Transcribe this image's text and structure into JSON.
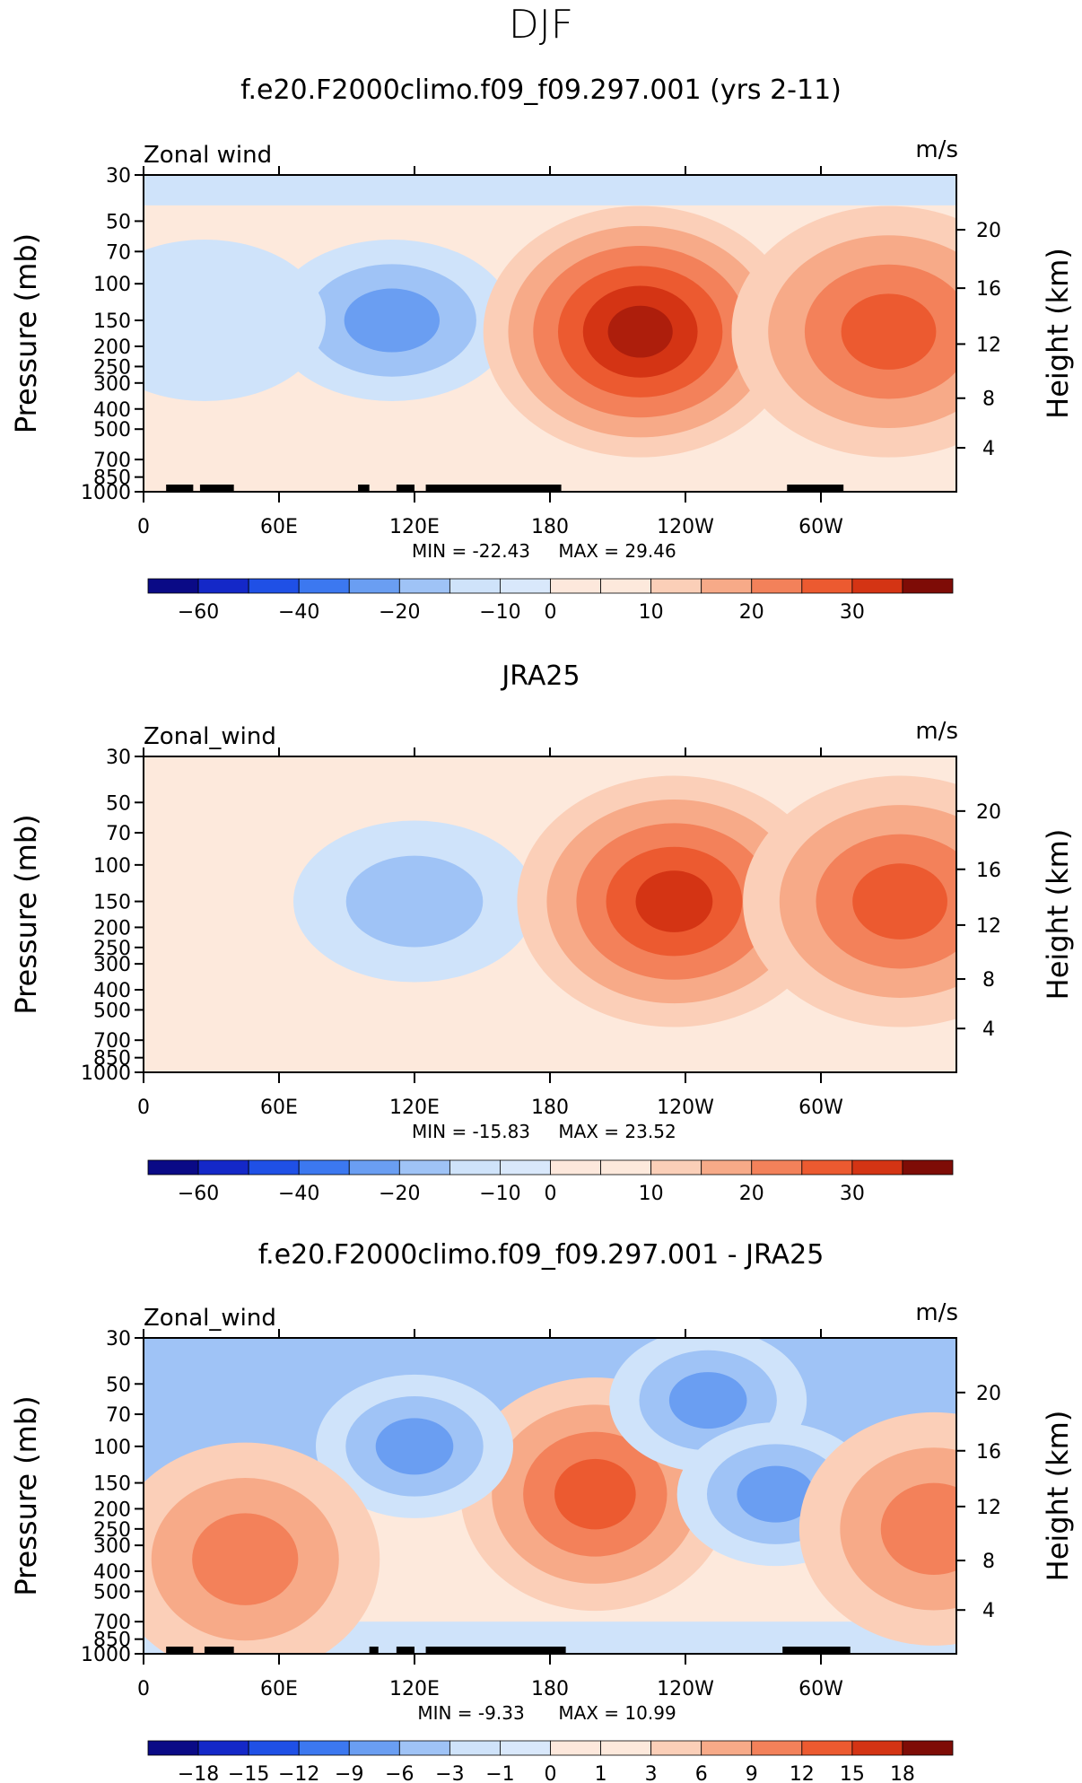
{
  "figure_title": "DJF",
  "chart_data": [
    {
      "type": "heatmap",
      "title": "f.e20.F2000climo.f09_f09.297.001 (yrs 2-11)",
      "left_label": "Zonal wind",
      "units": "m/s",
      "ylabel": "Pressure (mb)",
      "ylabel_right": "Height (km)",
      "pressure_ticks": [
        "30",
        "50",
        "70",
        "100",
        "150",
        "200",
        "250",
        "300",
        "400",
        "500",
        "700",
        "850",
        "1000"
      ],
      "height_ticks": [
        "20",
        "16",
        "12",
        "8",
        "4"
      ],
      "lon_ticks": [
        "0",
        "60E",
        "120E",
        "180",
        "120W",
        "60W"
      ],
      "min_text": "MIN = -22.43",
      "max_text": "MAX = 29.46",
      "colorbar_labels": [
        "-60",
        "-40",
        "-20",
        "-10",
        "0",
        "10",
        "20",
        "30"
      ],
      "features": [
        {
          "lon": 110,
          "p": 150,
          "level": -3
        },
        {
          "lon": 220,
          "p": 170,
          "level": 6
        },
        {
          "lon": 330,
          "p": 170,
          "level": 4
        },
        {
          "lon": 27,
          "p": 150,
          "level": -1
        }
      ],
      "topography": [
        [
          10,
          22
        ],
        [
          25,
          40
        ],
        [
          95,
          100
        ],
        [
          112,
          120
        ],
        [
          125,
          185
        ],
        [
          285,
          310
        ]
      ]
    },
    {
      "type": "heatmap",
      "title": "JRA25",
      "left_label": "Zonal_wind",
      "units": "m/s",
      "ylabel": "Pressure (mb)",
      "ylabel_right": "Height (km)",
      "pressure_ticks": [
        "30",
        "50",
        "70",
        "100",
        "150",
        "200",
        "250",
        "300",
        "400",
        "500",
        "700",
        "850",
        "1000"
      ],
      "height_ticks": [
        "20",
        "16",
        "12",
        "8",
        "4"
      ],
      "lon_ticks": [
        "0",
        "60E",
        "120E",
        "180",
        "120W",
        "60W"
      ],
      "min_text": "MIN = -15.83",
      "max_text": "MAX = 23.52",
      "colorbar_labels": [
        "-60",
        "-40",
        "-20",
        "-10",
        "0",
        "10",
        "20",
        "30"
      ],
      "features": [
        {
          "lon": 120,
          "p": 150,
          "level": -2
        },
        {
          "lon": 235,
          "p": 150,
          "level": 5
        },
        {
          "lon": 335,
          "p": 150,
          "level": 4
        }
      ],
      "topography": []
    },
    {
      "type": "heatmap",
      "title": "f.e20.F2000climo.f09_f09.297.001 - JRA25",
      "left_label": "Zonal_wind",
      "units": "m/s",
      "ylabel": "Pressure (mb)",
      "ylabel_right": "Height (km)",
      "pressure_ticks": [
        "30",
        "50",
        "70",
        "100",
        "150",
        "200",
        "250",
        "300",
        "400",
        "500",
        "700",
        "850",
        "1000"
      ],
      "height_ticks": [
        "20",
        "16",
        "12",
        "8",
        "4"
      ],
      "lon_ticks": [
        "0",
        "60E",
        "120E",
        "180",
        "120W",
        "60W"
      ],
      "min_text": "MIN = -9.33",
      "max_text": "MAX = 10.99",
      "colorbar_labels": [
        "-18",
        "-15",
        "-12",
        "-9",
        "-6",
        "-3",
        "-1",
        "0",
        "1",
        "3",
        "6",
        "9",
        "12",
        "15",
        "18"
      ],
      "features": [
        {
          "lon": 200,
          "p": 170,
          "level": 4
        },
        {
          "lon": 120,
          "p": 100,
          "level": -3
        },
        {
          "lon": 250,
          "p": 60,
          "level": -3
        },
        {
          "lon": 280,
          "p": 170,
          "level": -3
        },
        {
          "lon": 350,
          "p": 250,
          "level": 3
        },
        {
          "lon": 45,
          "p": 350,
          "level": 3
        }
      ],
      "topography": [
        [
          10,
          22
        ],
        [
          27,
          40
        ],
        [
          100,
          104
        ],
        [
          112,
          120
        ],
        [
          125,
          187
        ],
        [
          283,
          313
        ]
      ]
    }
  ],
  "colors": {
    "palette": [
      "#0a0a86",
      "#1428c8",
      "#1f50e6",
      "#3c78f0",
      "#6a9ef2",
      "#9fc3f6",
      "#cfe3fa",
      "#fde9dc",
      "#fbcfb8",
      "#f7aa88",
      "#f3815a",
      "#ec5a30",
      "#d43414",
      "#ad1e0c",
      "#7e0c06"
    ],
    "mid_negative": "#d9e8fb",
    "mid_positive": "#fde8dc",
    "topography": "#000000"
  }
}
